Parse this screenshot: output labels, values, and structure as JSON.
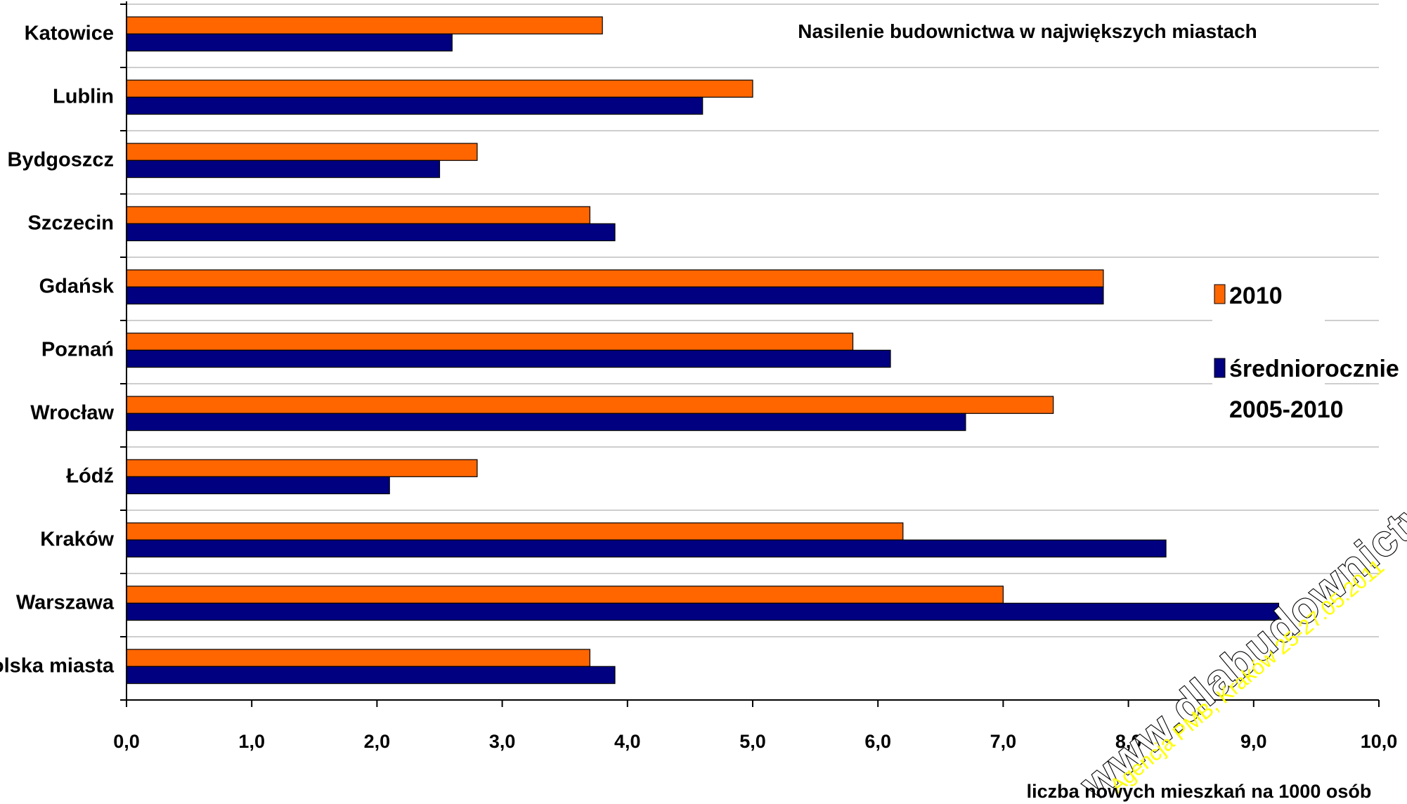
{
  "chart_data": {
    "type": "bar",
    "orientation": "horizontal",
    "title": "Nasilenie budownictwa w największych miastach",
    "xlabel": "liczba nowych mieszkań na 1000 osób",
    "ylabel": "",
    "xlim": [
      0,
      10
    ],
    "xticks": [
      "0,0",
      "1,0",
      "2,0",
      "3,0",
      "4,0",
      "5,0",
      "6,0",
      "7,0",
      "8,0",
      "9,0",
      "10,0"
    ],
    "grid": "horizontal",
    "legend_position": "right",
    "categories": [
      "Katowice",
      "Lublin",
      "Bydgoszcz",
      "Szczecin",
      "Gdańsk",
      "Poznań",
      "Wrocław",
      "Łódź",
      "Kraków",
      "Warszawa",
      "Polska miasta"
    ],
    "series": [
      {
        "name": "2010",
        "color": "#ff6600",
        "values": [
          3.8,
          5.0,
          2.8,
          3.7,
          7.8,
          5.8,
          7.4,
          2.8,
          6.2,
          7.0,
          3.7
        ]
      },
      {
        "name": "średniorocznie 2005-2010",
        "color": "#000080",
        "values": [
          2.6,
          4.6,
          2.5,
          3.9,
          7.8,
          6.1,
          6.7,
          2.1,
          8.3,
          9.2,
          3.9
        ]
      }
    ],
    "legend": {
      "line1": "2010",
      "line2a": "średniorocznie",
      "line2b": "2005-2010"
    }
  },
  "watermark": {
    "site": "www.dlabudownictwa.pl",
    "agency": "Agencja PMB, Kraków 25-27.05.2011"
  }
}
